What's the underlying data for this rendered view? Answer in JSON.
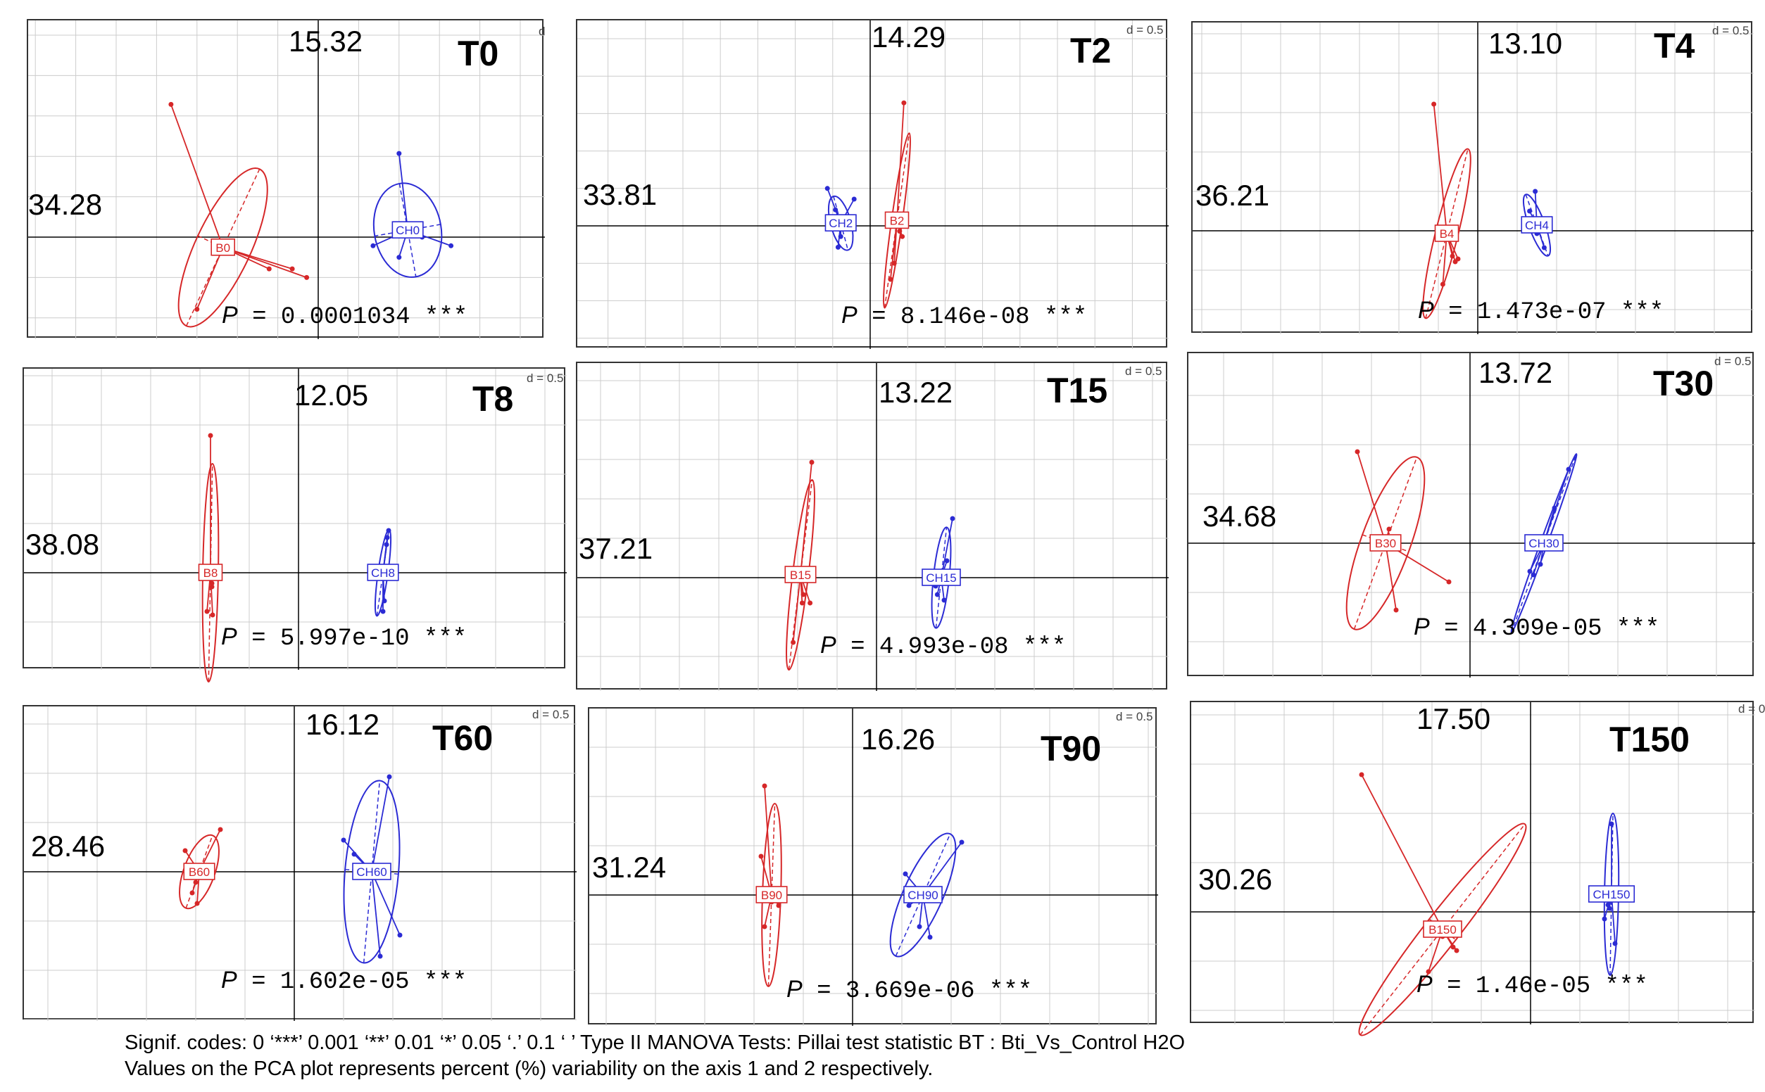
{
  "footer": {
    "line1": "Signif. codes:  0 ‘***’ 0.001 ‘**’ 0.01 ‘*’ 0.05 ‘.’ 0.1 ‘ ’  Type II MANOVA Tests: Pillai test statistic  BT : Bti_Vs_Control H2O",
    "line2": "Values on the PCA plot represents percent (%) variability on the axis 1 and 2 respectively."
  },
  "colors": {
    "B": "#d62728",
    "CH": "#2b2bd4",
    "axis": "#000000",
    "grid": "#cccccc"
  },
  "chart_data": [
    {
      "type": "scatter",
      "title": "T0",
      "axis1": "34.28",
      "axis2": "15.32",
      "scale_label": "d",
      "p_label": "P",
      "p_value": "= 0.0001034 ***",
      "groups": [
        {
          "name": "B0",
          "centroid": [
            -1.65,
            -0.18
          ],
          "points": [
            [
              -2.55,
              2.3
            ],
            [
              -0.85,
              -0.55
            ],
            [
              -0.45,
              -0.55
            ],
            [
              -0.2,
              -0.7
            ],
            [
              -2.1,
              -1.25
            ]
          ],
          "ellipse": {
            "rx": 1.5,
            "ry": 0.48,
            "angle": -65
          }
        },
        {
          "name": "CH0",
          "centroid": [
            1.55,
            0.12
          ],
          "points": [
            [
              1.4,
              1.45
            ],
            [
              1.4,
              -0.35
            ],
            [
              0.95,
              -0.15
            ],
            [
              1.8,
              0.0
            ],
            [
              2.3,
              -0.15
            ]
          ],
          "ellipse": {
            "rx": 0.82,
            "ry": 0.58,
            "angle": 80
          }
        }
      ]
    },
    {
      "type": "scatter",
      "title": "T2",
      "axis1": "33.81",
      "axis2": "14.29",
      "scale_label": "d = 0.5",
      "p_label": "P",
      "p_value": "= 8.146e-08 ***",
      "groups": [
        {
          "name": "B2",
          "centroid": [
            0.5,
            0.1
          ],
          "points": [
            [
              0.63,
              2.3
            ],
            [
              0.55,
              -0.1
            ],
            [
              0.6,
              -0.2
            ],
            [
              0.38,
              -1.0
            ],
            [
              0.45,
              -0.7
            ]
          ],
          "ellipse": {
            "rx": 1.65,
            "ry": 0.1,
            "angle": -82
          }
        },
        {
          "name": "CH2",
          "centroid": [
            -0.55,
            0.05
          ],
          "points": [
            [
              -0.8,
              0.7
            ],
            [
              -0.3,
              0.5
            ],
            [
              -0.55,
              -0.2
            ],
            [
              -0.6,
              -0.4
            ],
            [
              -0.65,
              0.3
            ]
          ],
          "ellipse": {
            "rx": 0.52,
            "ry": 0.19,
            "angle": 75
          }
        }
      ]
    },
    {
      "type": "scatter",
      "title": "T4",
      "axis1": "36.21",
      "axis2": "13.10",
      "scale_label": "d = 0.5",
      "p_label": "P",
      "p_value": "= 1.473e-07 ***",
      "groups": [
        {
          "name": "B4",
          "centroid": [
            -0.55,
            -0.05
          ],
          "points": [
            [
              -0.78,
              2.25
            ],
            [
              -0.45,
              -0.45
            ],
            [
              -0.4,
              -0.55
            ],
            [
              -0.35,
              -0.5
            ],
            [
              -0.62,
              -0.95
            ]
          ],
          "ellipse": {
            "rx": 1.55,
            "ry": 0.2,
            "angle": -76
          }
        },
        {
          "name": "CH4",
          "centroid": [
            1.05,
            0.1
          ],
          "points": [
            [
              1.02,
              0.7
            ],
            [
              0.92,
              0.35
            ],
            [
              1.05,
              -0.05
            ],
            [
              1.18,
              -0.3
            ],
            [
              1.05,
              0.2
            ]
          ],
          "ellipse": {
            "rx": 0.58,
            "ry": 0.14,
            "angle": 70
          }
        }
      ]
    },
    {
      "type": "scatter",
      "title": "T8",
      "axis1": "38.08",
      "axis2": "12.05",
      "scale_label": "d = 0.5",
      "p_label": "P",
      "p_value": "= 5.997e-10 ***",
      "groups": [
        {
          "name": "B8",
          "centroid": [
            -1.25,
            0.0
          ],
          "points": [
            [
              -1.25,
              1.95
            ],
            [
              -1.22,
              -0.6
            ],
            [
              -1.3,
              -0.55
            ],
            [
              -1.23,
              -0.2
            ],
            [
              -1.23,
              -0.15
            ]
          ],
          "ellipse": {
            "rx": 1.55,
            "ry": 0.11,
            "angle": -89
          }
        },
        {
          "name": "CH8",
          "centroid": [
            1.2,
            0.0
          ],
          "points": [
            [
              1.28,
              0.6
            ],
            [
              1.26,
              0.5
            ],
            [
              1.2,
              -0.55
            ],
            [
              1.22,
              -0.4
            ],
            [
              1.25,
              0.4
            ]
          ],
          "ellipse": {
            "rx": 0.62,
            "ry": 0.07,
            "angle": -82
          }
        }
      ]
    },
    {
      "type": "scatter",
      "title": "T15",
      "axis1": "37.21",
      "axis2": "13.22",
      "scale_label": "d = 0.5",
      "p_label": "P",
      "p_value": "= 4.993e-08 ***",
      "groups": [
        {
          "name": "B15",
          "centroid": [
            -1.35,
            0.05
          ],
          "points": [
            [
              -1.15,
              2.05
            ],
            [
              -1.3,
              -0.3
            ],
            [
              -1.32,
              -0.45
            ],
            [
              -1.48,
              -1.15
            ],
            [
              -1.18,
              -0.45
            ]
          ],
          "ellipse": {
            "rx": 1.7,
            "ry": 0.14,
            "angle": -83
          }
        },
        {
          "name": "CH15",
          "centroid": [
            1.15,
            0.0
          ],
          "points": [
            [
              1.35,
              1.05
            ],
            [
              1.2,
              -0.4
            ],
            [
              1.05,
              -0.15
            ],
            [
              1.08,
              -0.3
            ],
            [
              1.25,
              0.3
            ]
          ],
          "ellipse": {
            "rx": 0.9,
            "ry": 0.14,
            "angle": -84
          }
        }
      ]
    },
    {
      "type": "scatter",
      "title": "T30",
      "axis1": "34.68",
      "axis2": "13.72",
      "scale_label": "d = 0.5",
      "p_label": "P",
      "p_value": "= 4.309e-05 ***",
      "groups": [
        {
          "name": "B30",
          "centroid": [
            -1.2,
            0.0
          ],
          "points": [
            [
              -1.6,
              1.3
            ],
            [
              -1.15,
              0.2
            ],
            [
              -1.3,
              0.05
            ],
            [
              -0.3,
              -0.55
            ],
            [
              -1.05,
              -0.95
            ]
          ],
          "ellipse": {
            "rx": 1.3,
            "ry": 0.35,
            "angle": -70
          }
        },
        {
          "name": "CH30",
          "centroid": [
            1.05,
            0.0
          ],
          "points": [
            [
              1.4,
              1.05
            ],
            [
              0.85,
              -0.4
            ],
            [
              0.9,
              -0.45
            ],
            [
              1.0,
              -0.3
            ],
            [
              1.2,
              0.5
            ]
          ],
          "ellipse": {
            "rx": 1.35,
            "ry": 0.05,
            "angle": -70
          }
        }
      ]
    },
    {
      "type": "scatter",
      "title": "T60",
      "axis1": "28.46",
      "axis2": "16.12",
      "scale_label": "d = 0.5",
      "p_label": "P",
      "p_value": "= 1.602e-05 ***",
      "groups": [
        {
          "name": "B60",
          "centroid": [
            -1.35,
            0.0
          ],
          "points": [
            [
              -1.05,
              0.6
            ],
            [
              -1.55,
              0.3
            ],
            [
              -1.4,
              -0.15
            ],
            [
              -1.38,
              -0.45
            ],
            [
              -1.45,
              -0.3
            ]
          ],
          "ellipse": {
            "rx": 0.55,
            "ry": 0.22,
            "angle": -70
          }
        },
        {
          "name": "CH60",
          "centroid": [
            1.1,
            0.0
          ],
          "points": [
            [
              1.35,
              1.35
            ],
            [
              0.7,
              0.45
            ],
            [
              0.85,
              0.25
            ],
            [
              1.5,
              -0.9
            ],
            [
              1.22,
              -1.2
            ]
          ],
          "ellipse": {
            "rx": 1.3,
            "ry": 0.38,
            "angle": -85
          }
        }
      ]
    },
    {
      "type": "scatter",
      "title": "T90",
      "axis1": "31.24",
      "axis2": "16.26",
      "scale_label": "d = 0.5",
      "p_label": "P",
      "p_value": "= 3.669e-06 ***",
      "groups": [
        {
          "name": "B90",
          "centroid": [
            -1.15,
            0.0
          ],
          "points": [
            [
              -1.25,
              1.55
            ],
            [
              -1.25,
              -0.45
            ],
            [
              -1.15,
              -0.1
            ],
            [
              -1.05,
              -0.15
            ],
            [
              -1.3,
              0.55
            ]
          ],
          "ellipse": {
            "rx": 1.3,
            "ry": 0.13,
            "angle": -88
          }
        },
        {
          "name": "CH90",
          "centroid": [
            1.0,
            0.0
          ],
          "points": [
            [
              1.55,
              0.75
            ],
            [
              0.75,
              0.3
            ],
            [
              0.8,
              -0.15
            ],
            [
              0.95,
              -0.45
            ],
            [
              1.1,
              -0.6
            ]
          ],
          "ellipse": {
            "rx": 0.95,
            "ry": 0.28,
            "angle": -66
          }
        }
      ]
    },
    {
      "type": "scatter",
      "title": "T150",
      "axis1": "30.26",
      "axis2": "17.50",
      "scale_label": "d = 0",
      "p_label": "P",
      "p_value": "= 1.46e-05 ***",
      "groups": [
        {
          "name": "B150",
          "centroid": [
            -1.25,
            -0.25
          ],
          "points": [
            [
              -2.4,
              1.95
            ],
            [
              -1.25,
              -0.35
            ],
            [
              -1.1,
              -0.5
            ],
            [
              -1.05,
              -0.55
            ],
            [
              -1.45,
              -0.85
            ]
          ],
          "ellipse": {
            "rx": 1.9,
            "ry": 0.24,
            "angle": -52
          }
        },
        {
          "name": "CH150",
          "centroid": [
            1.15,
            0.25
          ],
          "points": [
            [
              1.15,
              1.25
            ],
            [
              1.05,
              -0.1
            ],
            [
              1.1,
              0.1
            ],
            [
              1.2,
              -0.45
            ],
            [
              1.12,
              0.05
            ]
          ],
          "ellipse": {
            "rx": 1.15,
            "ry": 0.1,
            "angle": -89
          }
        }
      ]
    }
  ]
}
